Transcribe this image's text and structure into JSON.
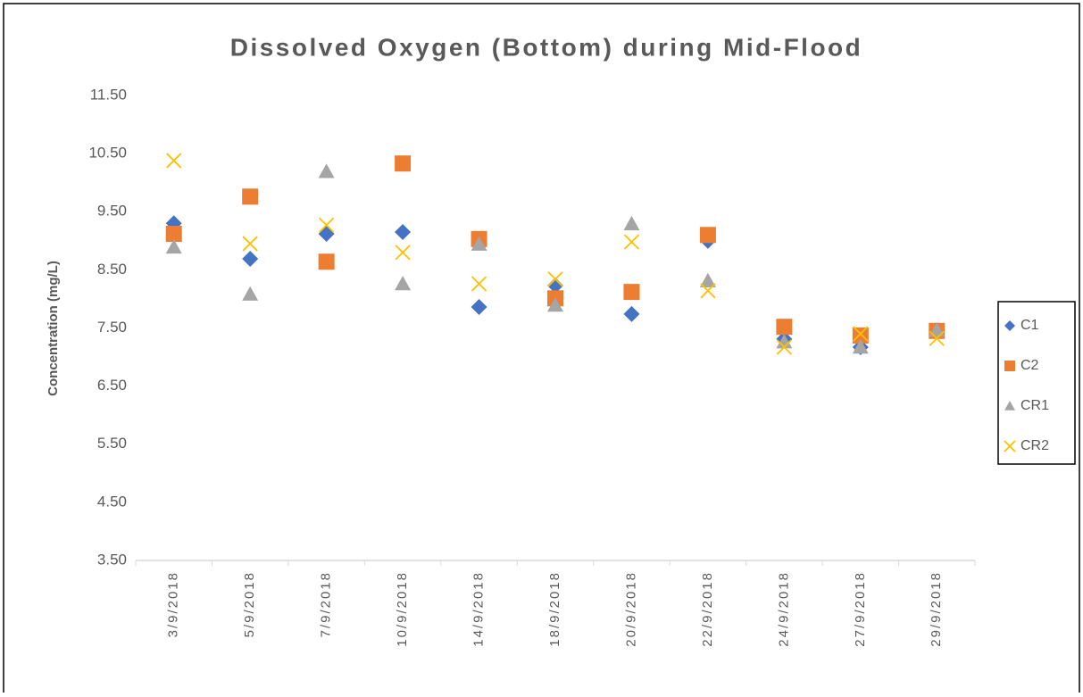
{
  "chart_data": {
    "type": "scatter",
    "title": "Dissolved Oxygen (Bottom) during Mid-Flood",
    "y_label": "Concentration (mg/L)",
    "categories": [
      "3/9/2018",
      "5/9/2018",
      "7/9/2018",
      "10/9/2018",
      "14/9/2018",
      "18/9/2018",
      "20/9/2018",
      "22/9/2018",
      "24/9/2018",
      "27/9/2018",
      "29/9/2018"
    ],
    "series": [
      {
        "name": "C1",
        "color": "#4472c4",
        "marker": "diamond",
        "values": [
          9.3,
          8.69,
          9.12,
          9.15,
          7.86,
          8.23,
          7.74,
          9.0,
          7.31,
          7.17,
          7.46
        ]
      },
      {
        "name": "C2",
        "color": "#ed7d31",
        "marker": "square",
        "values": [
          9.12,
          9.76,
          8.64,
          10.33,
          9.03,
          8.01,
          8.12,
          9.1,
          7.52,
          7.37,
          7.45
        ]
      },
      {
        "name": "CR1",
        "color": "#a5a5a5",
        "marker": "triangle",
        "values": [
          8.89,
          8.08,
          10.19,
          8.26,
          8.94,
          7.89,
          9.29,
          8.31,
          7.26,
          7.17,
          7.46
        ]
      },
      {
        "name": "CR2",
        "color": "#ffc000",
        "marker": "x",
        "values": [
          10.38,
          8.95,
          9.27,
          8.8,
          8.26,
          8.34,
          8.98,
          8.14,
          7.17,
          7.4,
          7.32
        ]
      }
    ],
    "ylim": [
      3.5,
      11.5
    ],
    "yticks": [
      {
        "value": 3.5,
        "label": "3.50"
      },
      {
        "value": 4.5,
        "label": "4.50"
      },
      {
        "value": 5.5,
        "label": "5.50"
      },
      {
        "value": 6.5,
        "label": "6.50"
      },
      {
        "value": 7.5,
        "label": "7.50"
      },
      {
        "value": 8.5,
        "label": "8.50"
      },
      {
        "value": 9.5,
        "label": "9.50"
      },
      {
        "value": 10.5,
        "label": "10.50"
      },
      {
        "value": 11.5,
        "label": "11.50"
      }
    ],
    "grid": false,
    "legend": "right"
  }
}
